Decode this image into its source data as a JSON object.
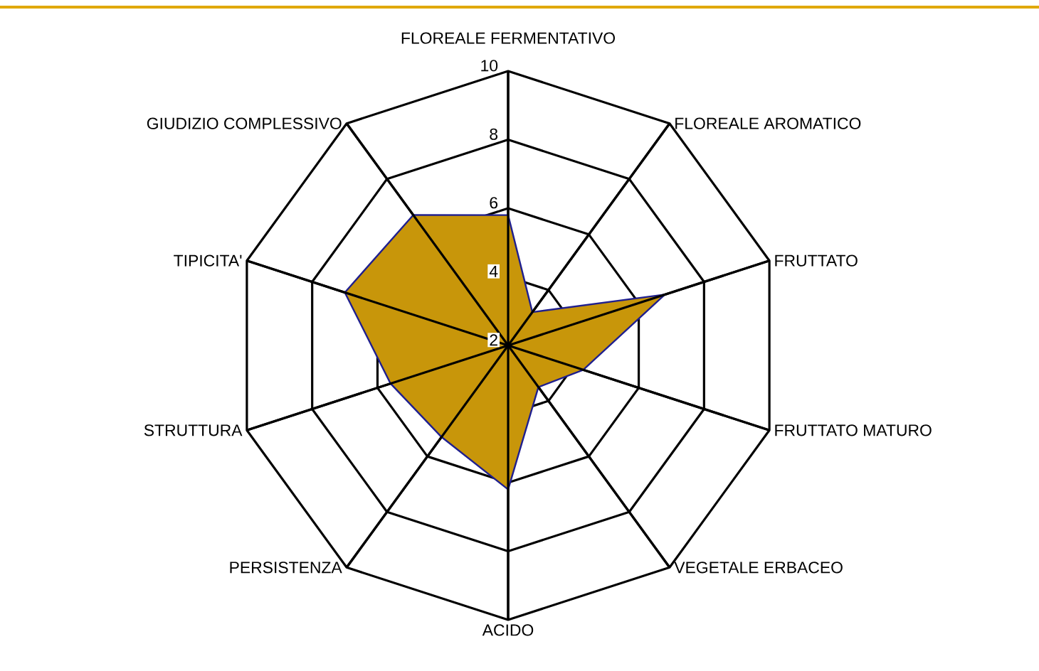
{
  "chart_data": {
    "type": "radar",
    "categories": [
      "FLOREALE FERMENTATIVO",
      "FLOREALE AROMATICO",
      "FRUTTATO",
      "FRUTTATO MATURO",
      "VEGETALE ERBACEO",
      "ACIDO",
      "PERSISTENZA",
      "STRUTTURA",
      "TIPICITA'",
      "GIUDIZIO COMPLESSIVO"
    ],
    "series": [
      {
        "color": "#c8960a",
        "values": [
          5.8,
          3.2,
          6.8,
          4.3,
          3.5,
          6.2,
          5.3,
          5.6,
          7.0,
          6.7
        ]
      }
    ],
    "ylim": [
      2,
      10
    ],
    "yticks": [
      2,
      4,
      6,
      8,
      10
    ],
    "grid": true
  }
}
